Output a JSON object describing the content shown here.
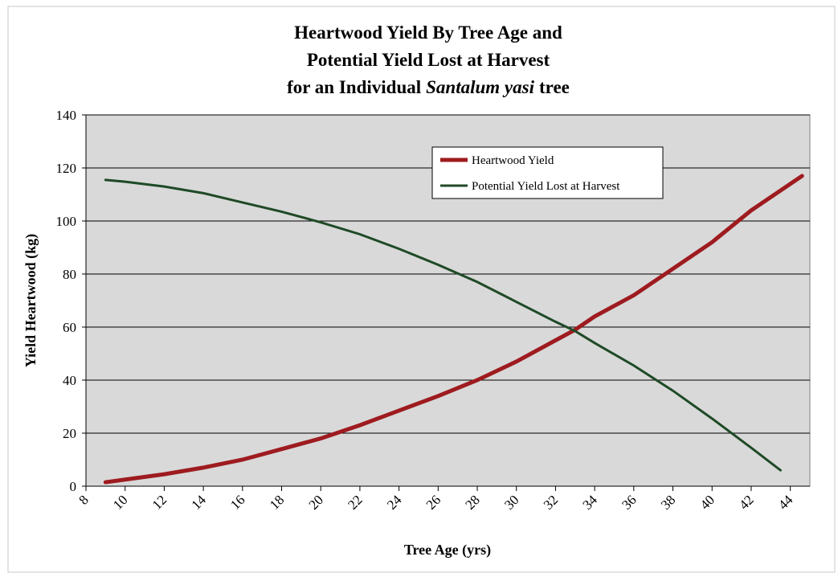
{
  "chart_data": {
    "type": "line",
    "title": [
      "Heartwood Yield By Tree Age and",
      "Potential Yield Lost at Harvest"
    ],
    "title_line3": [
      "for an Individual",
      "Santalum yasi",
      "tree"
    ],
    "x_label": "Tree Age (yrs)",
    "y_label": "Yield Heartwood (kg)",
    "xlim": [
      8,
      45
    ],
    "xticks": [
      8,
      10,
      12,
      14,
      16,
      18,
      20,
      22,
      24,
      26,
      28,
      30,
      32,
      34,
      36,
      38,
      40,
      42,
      44
    ],
    "ylim": [
      0,
      140
    ],
    "yticks": [
      0,
      20,
      40,
      60,
      80,
      100,
      120,
      140
    ],
    "grid": true,
    "legend": "top-center",
    "series": [
      {
        "name": "Heartwood Yield",
        "color": "#9e1b1f",
        "x": [
          9,
          10,
          12,
          14,
          16,
          18,
          20,
          22,
          24,
          26,
          28,
          30,
          32,
          33,
          34,
          36,
          38,
          40,
          42,
          44.6
        ],
        "values": [
          1.5,
          2.5,
          4.5,
          7,
          10,
          14,
          18,
          23,
          28.5,
          34,
          40,
          47,
          55,
          59,
          64,
          72,
          82,
          92,
          104,
          117
        ]
      },
      {
        "name": "Potential Yield Lost at Harvest",
        "color": "#1f4a26",
        "x": [
          9,
          10,
          12,
          14,
          16,
          18,
          20,
          22,
          24,
          26,
          28,
          30,
          32,
          33,
          34,
          36,
          38,
          40,
          42,
          43.5
        ],
        "values": [
          115.5,
          114.8,
          113,
          110.5,
          107,
          103.5,
          99.5,
          95,
          89.5,
          83.5,
          77,
          69.5,
          62,
          58.5,
          54,
          45.5,
          36,
          25.5,
          14.5,
          6
        ]
      }
    ]
  }
}
